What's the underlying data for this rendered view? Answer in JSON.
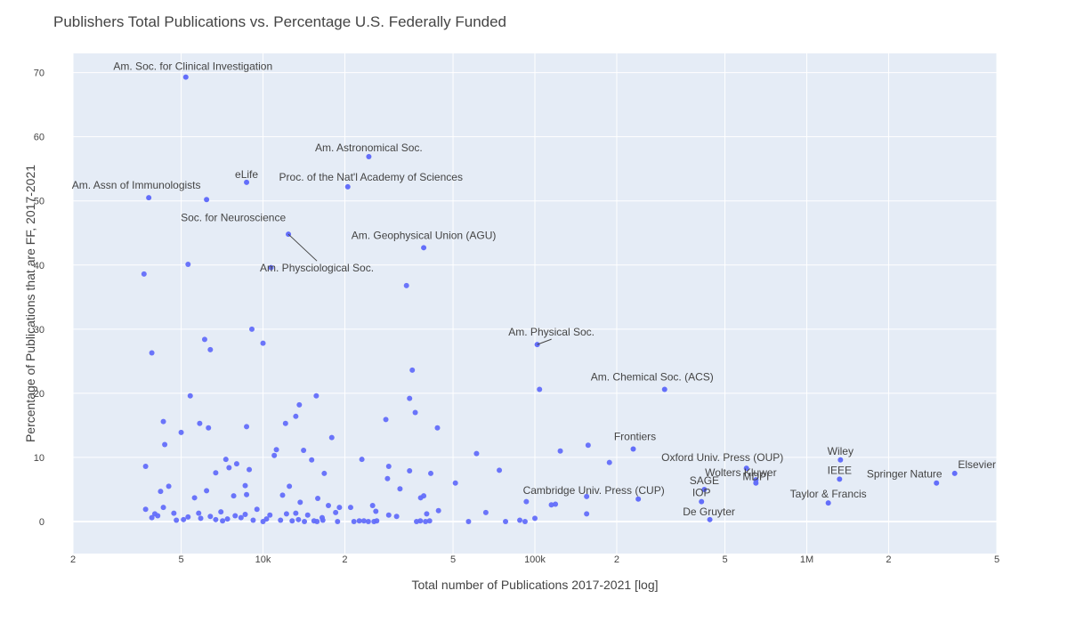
{
  "chart_data": {
    "type": "scatter",
    "title": "Publishers Total Publications vs. Percentage U.S. Federally Funded",
    "xlabel": "Total number of Publications 2017-2021 [log]",
    "ylabel": "Percentage of Publications that are FF, 2017-2021",
    "x_scale": "log",
    "xlim": [
      2000,
      5000000
    ],
    "ylim": [
      -5,
      73
    ],
    "grid": true,
    "marker_color": "#636efa",
    "plot_bg": "#e5ecf6",
    "x_ticks": [
      {
        "value": 2000,
        "label": "2"
      },
      {
        "value": 5000,
        "label": "5"
      },
      {
        "value": 10000,
        "label": "10k"
      },
      {
        "value": 20000,
        "label": "2"
      },
      {
        "value": 50000,
        "label": "5"
      },
      {
        "value": 100000,
        "label": "100k"
      },
      {
        "value": 200000,
        "label": "2"
      },
      {
        "value": 500000,
        "label": "5"
      },
      {
        "value": 1000000,
        "label": "1M"
      },
      {
        "value": 2000000,
        "label": "2"
      },
      {
        "value": 5000000,
        "label": "5"
      }
    ],
    "y_ticks": [
      0,
      10,
      20,
      30,
      40,
      50,
      60,
      70
    ],
    "labeled_points": [
      {
        "name": "Am. Soc. for Clinical Investigation",
        "x": 5200,
        "y": 69.3
      },
      {
        "name": "Am. Astronomical Soc.",
        "x": 24500,
        "y": 56.9
      },
      {
        "name": "eLife",
        "x": 8700,
        "y": 52.9
      },
      {
        "name": "Proc. of the Nat'l Academy of Sciences",
        "x": 20500,
        "y": 52.2
      },
      {
        "name": "Am. Assn of Immunologists",
        "x": 3800,
        "y": 50.5
      },
      {
        "name": "Soc. for Neuroscience",
        "x": 6200,
        "y": 50.2
      },
      {
        "name": "Am. Physciological Soc.",
        "x": 12400,
        "y": 44.8
      },
      {
        "name": "Am. Geophysical Union (AGU)",
        "x": 39000,
        "y": 42.7
      },
      {
        "name": "Am. Physical Soc.",
        "x": 102000,
        "y": 27.6
      },
      {
        "name": "Am. Chemical Soc. (ACS)",
        "x": 300000,
        "y": 20.6
      },
      {
        "name": "Frontiers",
        "x": 230000,
        "y": 11.3
      },
      {
        "name": "Wiley",
        "x": 1330000,
        "y": 9.6
      },
      {
        "name": "Oxford Univ. Press (OUP)",
        "x": 600000,
        "y": 8.3
      },
      {
        "name": "Elsevier",
        "x": 3500000,
        "y": 7.5
      },
      {
        "name": "Wolters Kluwer",
        "x": 650000,
        "y": 6.5
      },
      {
        "name": "MDPI",
        "x": 650000,
        "y": 6.0
      },
      {
        "name": "IEEE",
        "x": 1320000,
        "y": 6.6
      },
      {
        "name": "Springer Nature",
        "x": 3000000,
        "y": 6.0
      },
      {
        "name": "SAGE",
        "x": 420000,
        "y": 5.0
      },
      {
        "name": "Cambridge Univ. Press (CUP)",
        "x": 240000,
        "y": 3.5
      },
      {
        "name": "IOP",
        "x": 410000,
        "y": 3.1
      },
      {
        "name": "Taylor & Francis",
        "x": 1200000,
        "y": 2.9
      },
      {
        "name": "De Gruyter",
        "x": 440000,
        "y": 0.3
      }
    ],
    "points": [
      [
        3650,
        38.6
      ],
      [
        3900,
        26.3
      ],
      [
        4300,
        15.6
      ],
      [
        4350,
        12.0
      ],
      [
        5300,
        40.1
      ],
      [
        5400,
        19.6
      ],
      [
        5850,
        15.3
      ],
      [
        6100,
        28.4
      ],
      [
        6400,
        26.8
      ],
      [
        6300,
        14.6
      ],
      [
        8700,
        14.8
      ],
      [
        10700,
        39.6
      ],
      [
        9100,
        30.0
      ],
      [
        10000,
        27.8
      ],
      [
        3700,
        8.6
      ],
      [
        5000,
        13.9
      ],
      [
        6700,
        7.6
      ],
      [
        7300,
        9.7
      ],
      [
        7500,
        8.4
      ],
      [
        8000,
        9.0
      ],
      [
        8900,
        8.1
      ],
      [
        11000,
        10.3
      ],
      [
        11200,
        11.2
      ],
      [
        12100,
        15.3
      ],
      [
        13200,
        16.4
      ],
      [
        13600,
        18.2
      ],
      [
        14100,
        11.1
      ],
      [
        15100,
        9.6
      ],
      [
        15700,
        19.6
      ],
      [
        16800,
        7.5
      ],
      [
        17900,
        13.1
      ],
      [
        23100,
        9.7
      ],
      [
        28300,
        15.9
      ],
      [
        33700,
        36.8
      ],
      [
        35400,
        23.6
      ],
      [
        36300,
        17.0
      ],
      [
        34600,
        19.2
      ],
      [
        43800,
        14.6
      ],
      [
        61000,
        10.6
      ],
      [
        74000,
        8.0
      ],
      [
        29000,
        8.6
      ],
      [
        28700,
        6.7
      ],
      [
        31900,
        5.1
      ],
      [
        34600,
        7.9
      ],
      [
        41400,
        7.5
      ],
      [
        51000,
        6.0
      ],
      [
        104000,
        20.6
      ],
      [
        124000,
        11.0
      ],
      [
        157000,
        11.9
      ],
      [
        188000,
        9.2
      ],
      [
        155000,
        3.9
      ],
      [
        119000,
        2.7
      ],
      [
        115000,
        2.6
      ],
      [
        93000,
        3.1
      ],
      [
        4200,
        4.7
      ],
      [
        4500,
        5.5
      ],
      [
        5600,
        3.7
      ],
      [
        6200,
        4.8
      ],
      [
        7800,
        4.0
      ],
      [
        8600,
        5.6
      ],
      [
        8700,
        4.2
      ],
      [
        11800,
        4.1
      ],
      [
        12500,
        5.5
      ],
      [
        13700,
        3.0
      ],
      [
        15900,
        3.6
      ],
      [
        17400,
        2.5
      ],
      [
        19100,
        2.2
      ],
      [
        21000,
        2.2
      ],
      [
        25300,
        2.5
      ],
      [
        38000,
        3.7
      ],
      [
        39000,
        4.0
      ],
      [
        44200,
        1.7
      ],
      [
        66000,
        1.4
      ],
      [
        100000,
        0.5
      ],
      [
        155000,
        1.2
      ],
      [
        3700,
        1.9
      ],
      [
        4000,
        1.2
      ],
      [
        4300,
        2.2
      ],
      [
        4700,
        1.3
      ],
      [
        5300,
        0.7
      ],
      [
        5800,
        1.3
      ],
      [
        6400,
        0.8
      ],
      [
        7000,
        1.5
      ],
      [
        7900,
        0.9
      ],
      [
        8600,
        1.1
      ],
      [
        9500,
        1.9
      ],
      [
        10600,
        1.0
      ],
      [
        12200,
        1.2
      ],
      [
        13200,
        1.3
      ],
      [
        14600,
        1.0
      ],
      [
        16500,
        0.6
      ],
      [
        18500,
        1.4
      ],
      [
        26000,
        1.6
      ],
      [
        29000,
        1.0
      ],
      [
        31000,
        0.8
      ],
      [
        40000,
        1.2
      ],
      [
        3900,
        0.6
      ],
      [
        4100,
        0.9
      ],
      [
        5100,
        0.3
      ],
      [
        5900,
        0.5
      ],
      [
        6700,
        0.3
      ],
      [
        7400,
        0.4
      ],
      [
        8300,
        0.6
      ],
      [
        9200,
        0.2
      ],
      [
        10300,
        0.4
      ],
      [
        11600,
        0.2
      ],
      [
        13500,
        0.3
      ],
      [
        15400,
        0.1
      ],
      [
        16600,
        0.2
      ],
      [
        18800,
        0.0
      ],
      [
        22600,
        0.1
      ],
      [
        24400,
        0.0
      ],
      [
        26200,
        0.1
      ],
      [
        37900,
        0.1
      ],
      [
        39600,
        0.0
      ],
      [
        57000,
        0.0
      ],
      [
        78000,
        0.0
      ],
      [
        88000,
        0.2
      ],
      [
        92000,
        0.0
      ],
      [
        4800,
        0.2
      ],
      [
        7100,
        0.1
      ],
      [
        10000,
        0.0
      ],
      [
        12800,
        0.1
      ],
      [
        14200,
        0.0
      ],
      [
        15800,
        0.0
      ],
      [
        21600,
        0.0
      ],
      [
        23500,
        0.1
      ],
      [
        25600,
        0.0
      ],
      [
        36700,
        0.0
      ],
      [
        41000,
        0.1
      ]
    ]
  }
}
